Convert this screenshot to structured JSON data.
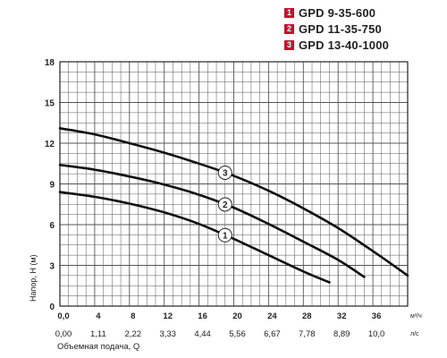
{
  "legend": [
    {
      "num": "1",
      "label": "GPD 9-35-600"
    },
    {
      "num": "2",
      "label": "GPD 11-35-750"
    },
    {
      "num": "3",
      "label": "GPD 13-40-1000"
    }
  ],
  "colors": {
    "accent": "#c8102e",
    "curve": "#111111",
    "grid": "#555555"
  },
  "chart_data": {
    "type": "line",
    "ylabel": "Напор, H (м)",
    "xlabel": "Объемная подача, Q",
    "x_unit": "м³/ч",
    "x2_unit": "л/с",
    "xlim": [
      0,
      40
    ],
    "ylim": [
      0,
      18
    ],
    "y_ticks": [
      "0",
      "3",
      "6",
      "9",
      "12",
      "15",
      "18"
    ],
    "x_ticks": [
      "0,0",
      "4",
      "8",
      "12",
      "16",
      "20",
      "24",
      "28",
      "32",
      "36"
    ],
    "x2_ticks": [
      "0,00",
      "1,11",
      "2,22",
      "3,33",
      "4,44",
      "5,56",
      "6,67",
      "7,78",
      "8,89",
      "10,0"
    ],
    "grid": true,
    "series": [
      {
        "name": "1",
        "label_at": 19,
        "x": [
          0,
          4,
          8,
          12,
          16,
          20,
          24,
          28,
          31
        ],
        "y": [
          8.4,
          8.05,
          7.55,
          6.9,
          6.05,
          4.95,
          3.75,
          2.55,
          1.75
        ]
      },
      {
        "name": "2",
        "label_at": 19,
        "x": [
          0,
          4,
          8,
          12,
          16,
          20,
          24,
          28,
          32,
          35
        ],
        "y": [
          10.4,
          10.05,
          9.55,
          8.95,
          8.2,
          7.25,
          6.05,
          4.75,
          3.4,
          2.15
        ]
      },
      {
        "name": "3",
        "label_at": 19,
        "x": [
          0,
          4,
          8,
          12,
          16,
          20,
          24,
          28,
          32,
          36,
          40
        ],
        "y": [
          13.1,
          12.65,
          12.0,
          11.3,
          10.5,
          9.6,
          8.5,
          7.2,
          5.75,
          4.05,
          2.25
        ]
      }
    ]
  }
}
